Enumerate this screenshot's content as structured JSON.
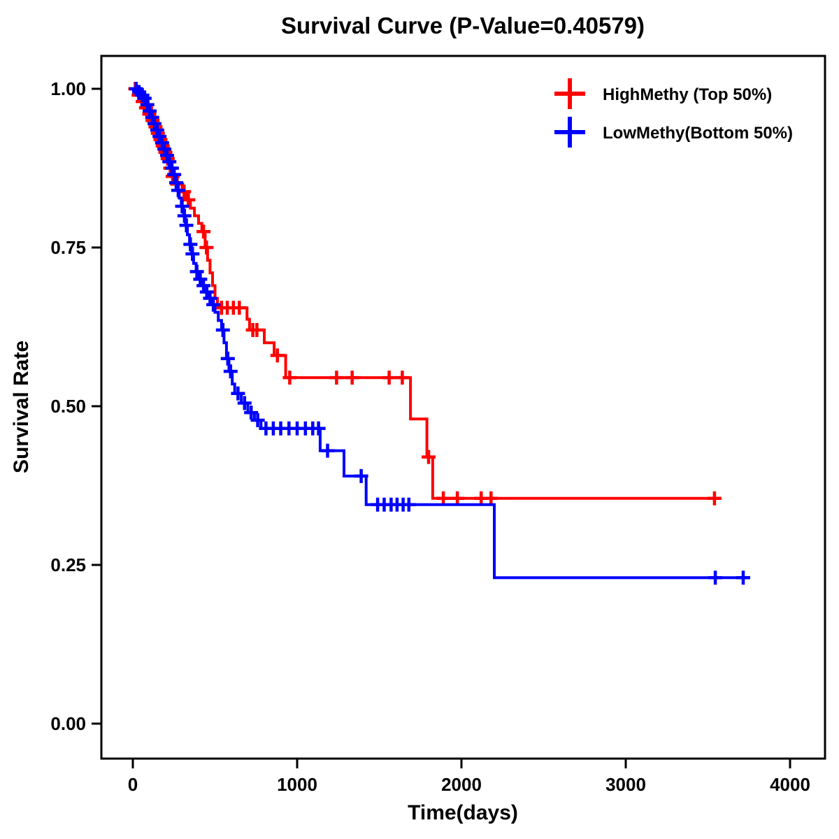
{
  "chart_data": {
    "type": "line",
    "subtype": "kaplan-meier-step",
    "title": "Survival Curve (P-Value=0.40579)",
    "p_value": "0.40579",
    "xlabel": "Time(days)",
    "ylabel": "Survival Rate",
    "xlim": [
      0,
      4000
    ],
    "ylim": [
      0,
      1
    ],
    "x_ticks": [
      0,
      1000,
      2000,
      3000,
      4000
    ],
    "x_tick_labels": [
      "0",
      "1000",
      "2000",
      "3000",
      "4000"
    ],
    "y_ticks": [
      0,
      0.25,
      0.5,
      0.75,
      1
    ],
    "y_tick_labels": [
      "0.00",
      "0.25",
      "0.50",
      "0.75",
      "1.00"
    ],
    "grid": false,
    "legend_position": "top-right",
    "series": [
      {
        "id": "highmethy",
        "name": "HighMethy (Top 50%)",
        "color": "#ff0000",
        "end_time": 3550,
        "points": [
          [
            0,
            1.0
          ],
          [
            25,
            0.99
          ],
          [
            50,
            0.98
          ],
          [
            70,
            0.97
          ],
          [
            90,
            0.96
          ],
          [
            110,
            0.95
          ],
          [
            130,
            0.94
          ],
          [
            145,
            0.93
          ],
          [
            160,
            0.92
          ],
          [
            175,
            0.91
          ],
          [
            190,
            0.9
          ],
          [
            205,
            0.89
          ],
          [
            220,
            0.875
          ],
          [
            235,
            0.862
          ],
          [
            250,
            0.85
          ],
          [
            300,
            0.838
          ],
          [
            325,
            0.825
          ],
          [
            350,
            0.812
          ],
          [
            375,
            0.8
          ],
          [
            400,
            0.788
          ],
          [
            420,
            0.775
          ],
          [
            440,
            0.75
          ],
          [
            455,
            0.73
          ],
          [
            470,
            0.71
          ],
          [
            485,
            0.69
          ],
          [
            500,
            0.67
          ],
          [
            515,
            0.655
          ],
          [
            695,
            0.637
          ],
          [
            710,
            0.62
          ],
          [
            800,
            0.6
          ],
          [
            860,
            0.58
          ],
          [
            930,
            0.545
          ],
          [
            1690,
            0.48
          ],
          [
            1790,
            0.42
          ],
          [
            1825,
            0.355
          ]
        ],
        "censors": [
          [
            15,
            1.0
          ],
          [
            35,
            0.99
          ],
          [
            60,
            0.98
          ],
          [
            80,
            0.97
          ],
          [
            100,
            0.96
          ],
          [
            120,
            0.95
          ],
          [
            138,
            0.94
          ],
          [
            152,
            0.93
          ],
          [
            168,
            0.92
          ],
          [
            182,
            0.91
          ],
          [
            198,
            0.9
          ],
          [
            212,
            0.89
          ],
          [
            228,
            0.875
          ],
          [
            242,
            0.862
          ],
          [
            270,
            0.85
          ],
          [
            312,
            0.838
          ],
          [
            338,
            0.825
          ],
          [
            430,
            0.775
          ],
          [
            448,
            0.75
          ],
          [
            540,
            0.655
          ],
          [
            575,
            0.655
          ],
          [
            612,
            0.655
          ],
          [
            648,
            0.655
          ],
          [
            730,
            0.62
          ],
          [
            755,
            0.62
          ],
          [
            880,
            0.58
          ],
          [
            955,
            0.545
          ],
          [
            1240,
            0.545
          ],
          [
            1335,
            0.545
          ],
          [
            1560,
            0.545
          ],
          [
            1640,
            0.545
          ],
          [
            1800,
            0.42
          ],
          [
            1890,
            0.355
          ],
          [
            1975,
            0.355
          ],
          [
            2120,
            0.355
          ],
          [
            2180,
            0.355
          ],
          [
            3540,
            0.355
          ]
        ]
      },
      {
        "id": "lowmethy",
        "name": "LowMethy(Bottom 50%)",
        "color": "#0000ff",
        "end_time": 3720,
        "points": [
          [
            0,
            1.0
          ],
          [
            30,
            0.995
          ],
          [
            50,
            0.99
          ],
          [
            65,
            0.985
          ],
          [
            80,
            0.975
          ],
          [
            95,
            0.965
          ],
          [
            110,
            0.955
          ],
          [
            125,
            0.945
          ],
          [
            140,
            0.935
          ],
          [
            155,
            0.925
          ],
          [
            170,
            0.915
          ],
          [
            185,
            0.905
          ],
          [
            200,
            0.895
          ],
          [
            215,
            0.885
          ],
          [
            230,
            0.875
          ],
          [
            245,
            0.865
          ],
          [
            258,
            0.852
          ],
          [
            270,
            0.84
          ],
          [
            282,
            0.828
          ],
          [
            295,
            0.815
          ],
          [
            308,
            0.8
          ],
          [
            320,
            0.785
          ],
          [
            332,
            0.77
          ],
          [
            345,
            0.755
          ],
          [
            358,
            0.74
          ],
          [
            370,
            0.725
          ],
          [
            385,
            0.712
          ],
          [
            400,
            0.7
          ],
          [
            420,
            0.69
          ],
          [
            440,
            0.68
          ],
          [
            460,
            0.67
          ],
          [
            480,
            0.66
          ],
          [
            500,
            0.648
          ],
          [
            520,
            0.635
          ],
          [
            540,
            0.62
          ],
          [
            555,
            0.6
          ],
          [
            570,
            0.575
          ],
          [
            585,
            0.555
          ],
          [
            605,
            0.535
          ],
          [
            620,
            0.52
          ],
          [
            660,
            0.505
          ],
          [
            700,
            0.49
          ],
          [
            740,
            0.478
          ],
          [
            780,
            0.465
          ],
          [
            1140,
            0.43
          ],
          [
            1285,
            0.39
          ],
          [
            1420,
            0.345
          ],
          [
            2200,
            0.23
          ]
        ],
        "censors": [
          [
            20,
            1.0
          ],
          [
            38,
            0.995
          ],
          [
            58,
            0.99
          ],
          [
            72,
            0.985
          ],
          [
            88,
            0.975
          ],
          [
            102,
            0.965
          ],
          [
            118,
            0.955
          ],
          [
            132,
            0.945
          ],
          [
            148,
            0.935
          ],
          [
            162,
            0.925
          ],
          [
            178,
            0.915
          ],
          [
            192,
            0.905
          ],
          [
            208,
            0.895
          ],
          [
            222,
            0.885
          ],
          [
            238,
            0.875
          ],
          [
            252,
            0.865
          ],
          [
            264,
            0.852
          ],
          [
            276,
            0.84
          ],
          [
            300,
            0.815
          ],
          [
            314,
            0.8
          ],
          [
            326,
            0.785
          ],
          [
            350,
            0.755
          ],
          [
            363,
            0.74
          ],
          [
            390,
            0.712
          ],
          [
            410,
            0.7
          ],
          [
            430,
            0.69
          ],
          [
            450,
            0.68
          ],
          [
            470,
            0.67
          ],
          [
            490,
            0.66
          ],
          [
            548,
            0.62
          ],
          [
            578,
            0.575
          ],
          [
            595,
            0.555
          ],
          [
            640,
            0.52
          ],
          [
            680,
            0.505
          ],
          [
            720,
            0.49
          ],
          [
            760,
            0.478
          ],
          [
            810,
            0.465
          ],
          [
            855,
            0.465
          ],
          [
            900,
            0.465
          ],
          [
            950,
            0.465
          ],
          [
            1000,
            0.465
          ],
          [
            1050,
            0.465
          ],
          [
            1095,
            0.465
          ],
          [
            1130,
            0.465
          ],
          [
            1185,
            0.43
          ],
          [
            1390,
            0.39
          ],
          [
            1490,
            0.345
          ],
          [
            1530,
            0.345
          ],
          [
            1572,
            0.345
          ],
          [
            1608,
            0.345
          ],
          [
            1645,
            0.345
          ],
          [
            1680,
            0.345
          ],
          [
            3545,
            0.23
          ],
          [
            3715,
            0.23
          ]
        ]
      }
    ]
  }
}
